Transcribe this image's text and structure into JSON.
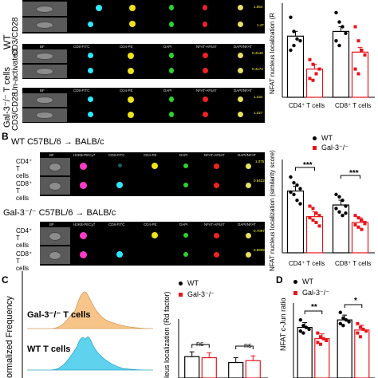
{
  "panelA": {
    "groups": [
      {
        "label_lines": [
          "WT",
          "CD3/CD28"
        ],
        "rows": [
          {
            "channels": [
              "BF",
              "CD8-FITC",
              "CD4-PE",
              "DAPI",
              "NFAT-AF647",
              "DAPI/NFAT"
            ],
            "score": "1.564"
          },
          {
            "channels": [],
            "score": "1.47"
          }
        ]
      },
      {
        "label_lines": [
          "Gal-3⁻/⁻ T cells",
          "Un-activated"
        ],
        "rows": [
          {
            "channels": [
              "BF",
              "CD8-FITC",
              "CD4-PE",
              "DAPI",
              "NFAT-AF647",
              "DAPI/NFAT"
            ],
            "score": "0.4148"
          },
          {
            "channels": [],
            "score": "0.4173"
          }
        ]
      },
      {
        "label_lines": [
          "CD3/CD28"
        ],
        "rows": [
          {
            "channels": [
              "BF",
              "CD8-FITC",
              "CD4-PE",
              "DAPI",
              "NFAT-AF647",
              "DAPI/NFAT"
            ],
            "score": "1.232"
          },
          {
            "channels": [],
            "score": "1.227"
          }
        ]
      }
    ],
    "chart_data": {
      "type": "bar",
      "ylabel": "NFAT nucleus localization (R",
      "categories": [
        "CD4⁺ T cells",
        "CD8⁺ T cells"
      ],
      "series": [
        {
          "name": "WT",
          "color": "#000000",
          "values": [
            1.25,
            1.3
          ]
        },
        {
          "name": "Gal-3⁻/⁻",
          "color": "#e8141c",
          "values": [
            0.9,
            1.08
          ]
        }
      ],
      "points": [
        [
          [
            1.45,
            1.3,
            1.22,
            1.2,
            1.1,
            1.15
          ],
          [
            1.5,
            1.4,
            1.35,
            1.28,
            1.2,
            1.15
          ]
        ],
        [
          [
            1.0,
            0.95,
            0.85,
            0.9,
            0.8,
            0.78
          ],
          [
            1.35,
            1.2,
            1.1,
            1.05,
            0.9,
            0.85
          ]
        ]
      ],
      "ylim": [
        0.6,
        1.6
      ]
    }
  },
  "panelB": {
    "label": "B",
    "groups": [
      {
        "title": "WT C57BL/6 → BALB/c",
        "channels": [
          "BF",
          "H2KB-PECy7",
          "CD8-FITC",
          "CD4-PE",
          "DAPI",
          "NFAT-AF647",
          "DAPI/NFAT"
        ],
        "rows": [
          {
            "label": "CD4⁺ T cells",
            "score": "1.075"
          },
          {
            "label": "CD8⁺ T cells",
            "score": "0.9422"
          }
        ]
      },
      {
        "title": "Gal-3⁻/⁻ C57BL/6 → BALB/c",
        "channels": [
          "BF",
          "H2KB-PECy7",
          "CD8-FITC",
          "CD4-PE",
          "DAPI",
          "NFAT-AF647",
          "DAPI/NFAT"
        ],
        "rows": [
          {
            "label": "CD4⁺ T cells",
            "score": "0.7097"
          },
          {
            "label": "CD8⁺ T cells",
            "score": "0.6809"
          }
        ]
      }
    ],
    "chart_data": {
      "type": "bar",
      "ylabel": "NFAT nucleus localization (similarity score)",
      "categories": [
        "CD4⁺ T cells",
        "CD8⁺ T cells"
      ],
      "legend": [
        "WT",
        "Gal-3⁻/⁻"
      ],
      "significance": [
        "***",
        "***"
      ],
      "series": [
        {
          "name": "WT",
          "color": "#000000",
          "values": [
            0.93,
            0.81
          ]
        },
        {
          "name": "Gal-3⁻/⁻",
          "color": "#e8141c",
          "values": [
            0.71,
            0.66
          ]
        }
      ],
      "points": [
        [
          [
            1.05,
            1.0,
            0.98,
            0.95,
            0.92,
            0.9,
            0.85,
            0.82
          ],
          [
            0.9,
            0.88,
            0.85,
            0.8,
            0.78,
            0.75,
            0.72,
            0.74
          ]
        ],
        [
          [
            0.8,
            0.78,
            0.74,
            0.72,
            0.7,
            0.68,
            0.66,
            0.63
          ],
          [
            0.72,
            0.7,
            0.68,
            0.66,
            0.64,
            0.62,
            0.6,
            0.65
          ]
        ]
      ],
      "ylim": [
        0.4,
        1.2
      ]
    }
  },
  "panelC": {
    "label": "C",
    "histogram": {
      "ylabel": "ormalized Frequency",
      "series": [
        {
          "name": "Gal-3⁻/⁻ T cells",
          "color": "#f7c48a"
        },
        {
          "name": "WT T cells",
          "color": "#5fd3ee"
        }
      ]
    },
    "chart_data": {
      "type": "bar",
      "ylabel": "leus localization (Rd factor)",
      "legend": [
        "WT",
        "Gal-3⁻/⁻"
      ],
      "significance": [
        "ns",
        "ns"
      ],
      "series": [
        {
          "name": "WT",
          "color": "#000000",
          "values": [
            0.58,
            0.42
          ]
        },
        {
          "name": "Gal-3⁻/⁻",
          "color": "#e8141c",
          "values": [
            0.55,
            0.47
          ]
        }
      ]
    }
  },
  "panelD": {
    "label": "D",
    "chart_data": {
      "type": "bar",
      "ylabel": "NFAT c-Jun ratio",
      "legend": [
        "WT",
        "Gal-3⁻/⁻"
      ],
      "significance": [
        "**",
        "*"
      ],
      "series": [
        {
          "name": "WT",
          "color": "#000000",
          "values": [
            1.35,
            1.55
          ]
        },
        {
          "name": "Gal-3⁻/⁻",
          "color": "#e8141c",
          "values": [
            1.05,
            1.28
          ]
        }
      ],
      "points": [
        [
          [
            1.55,
            1.4,
            1.35,
            1.3,
            1.25,
            1.2
          ],
          [
            1.75,
            1.6,
            1.55,
            1.5,
            1.45,
            1.4
          ]
        ],
        [
          [
            1.2,
            1.1,
            1.05,
            1.0,
            0.95,
            0.9
          ],
          [
            1.45,
            1.35,
            1.3,
            1.25,
            1.2,
            1.1
          ]
        ]
      ]
    }
  },
  "colors": {
    "fitc": "#2ee8ff",
    "pe": "#f0e21a",
    "dapi": "#2dd32d",
    "af647": "#f22222",
    "merge": "#e8e060",
    "pecy7": "#ff3cc8"
  }
}
